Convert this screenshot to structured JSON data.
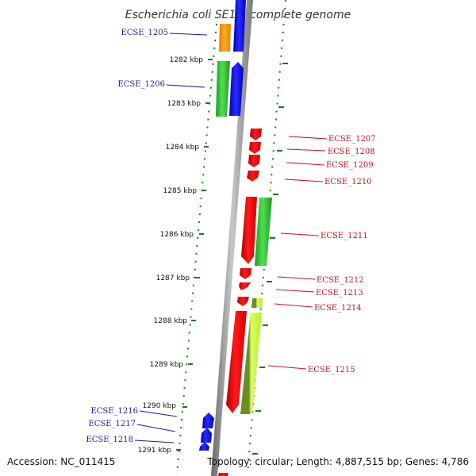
{
  "title": "Escherichia coli SE11, complete genome",
  "footer": {
    "accession": "Accession: NC_011415",
    "topology": "Topology: circular; Length: 4,887,515 bp; Genes: 4,786"
  },
  "ticks": [
    "1282 kbp",
    "1283 kbp",
    "1284 kbp",
    "1285 kbp",
    "1286 kbp",
    "1287 kbp",
    "1288 kbp",
    "1289 kbp",
    "1290 kbp",
    "1291 kbp"
  ],
  "genes_left": [
    "ECSE_1205",
    "ECSE_1206",
    "ECSE_1216",
    "ECSE_1217",
    "ECSE_1218"
  ],
  "genes_right": [
    "ECSE_1207",
    "ECSE_1208",
    "ECSE_1209",
    "ECSE_1210",
    "ECSE_1211",
    "ECSE_1212",
    "ECSE_1213",
    "ECSE_1214",
    "ECSE_1215"
  ],
  "colors": {
    "blue": "#0000ff",
    "red": "#ff0000",
    "green": "#33cc33",
    "orange": "#ff9900",
    "lime": "#b6f028",
    "olive": "#6b8e23",
    "backbone": "#888888",
    "ruler": "#1a7a1a",
    "label_blue": "#1a1aa8",
    "label_red": "#c8141e"
  }
}
